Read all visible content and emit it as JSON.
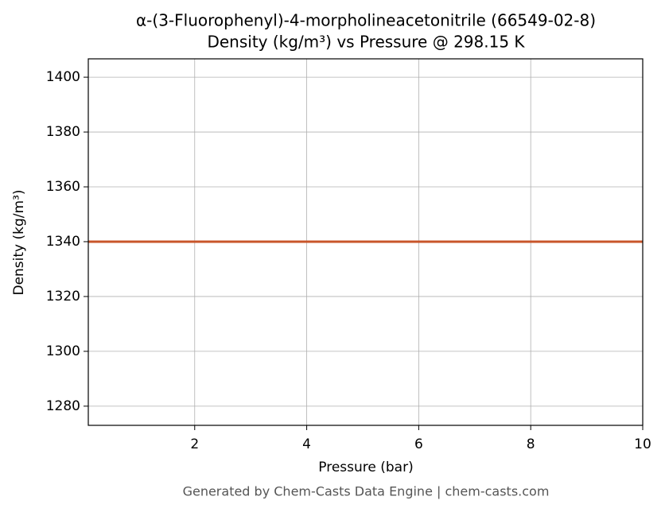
{
  "chart_data": {
    "type": "line",
    "title": "α-(3-Fluorophenyl)-4-morpholineacetonitrile (66549-02-8)",
    "subtitle": "Density (kg/m³) vs Pressure @ 298.15 K",
    "x_label": "Pressure (bar)",
    "y_label": "Density (kg/m³)",
    "footer": "Generated by Chem-Casts Data Engine | chem-casts.com",
    "x": [
      0.1,
      1,
      2,
      3,
      4,
      5,
      6,
      7,
      8,
      9,
      10
    ],
    "series": [
      {
        "name": "Density",
        "color": "#c8552a",
        "values": [
          1340,
          1340,
          1340,
          1340,
          1340,
          1340,
          1340,
          1340,
          1340,
          1340,
          1340
        ]
      }
    ],
    "xlim": [
      0.1,
      10
    ],
    "ylim": [
      1273,
      1406.7
    ],
    "xticks": [
      2,
      4,
      6,
      8,
      10
    ],
    "yticks": [
      1280,
      1300,
      1320,
      1340,
      1360,
      1380,
      1400
    ],
    "grid": true
  }
}
